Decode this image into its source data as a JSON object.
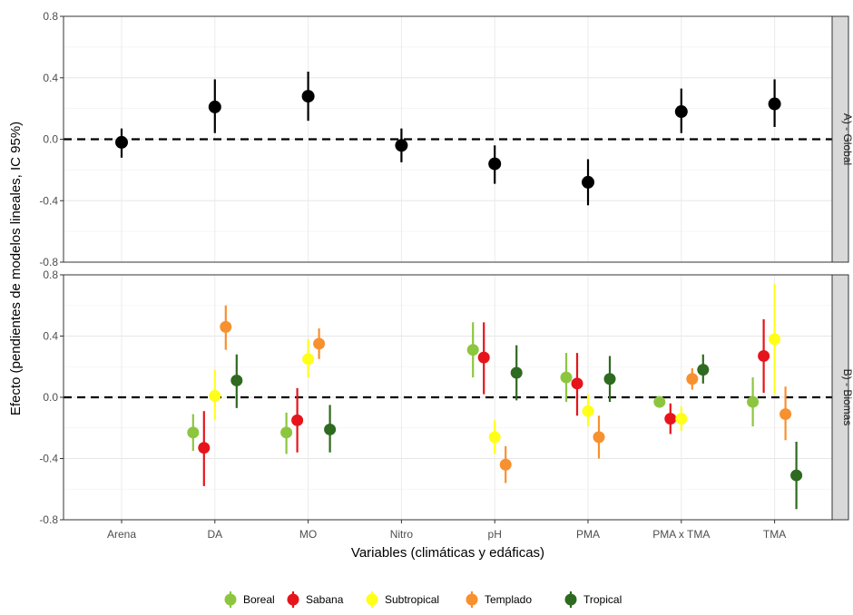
{
  "chart_data": {
    "type": "scatter",
    "subtype": "point-range facet plot",
    "xlabel": "Variables (climáticas y edáficas)",
    "ylabel": "Efecto (pendientes de modelos lineales, IC 95%)",
    "categories": [
      "Arena",
      "DA",
      "MO",
      "Nitro",
      "pH",
      "PMA",
      "PMA x TMA",
      "TMA"
    ],
    "yticks": [
      "0.8",
      "0.4",
      "0.0",
      "-0.4",
      "-0.8"
    ],
    "ylim": [
      -0.8,
      0.8
    ],
    "reference_line": 0.0,
    "legend_position": "bottom",
    "legend": [
      "Boreal",
      "Sabana",
      "Subtropical",
      "Templado",
      "Tropical"
    ],
    "colors": {
      "Global": "#000000",
      "Boreal": "#8cc63f",
      "Sabana": "#e6141b",
      "Subtropical": "#ffff1a",
      "Templado": "#f7902f",
      "Tropical": "#2e6a1f"
    },
    "panels": [
      {
        "strip": "A) - Global",
        "series": [
          {
            "name": "Global",
            "points": [
              {
                "category": "Arena",
                "y": -0.02,
                "lo": -0.12,
                "hi": 0.07
              },
              {
                "category": "DA",
                "y": 0.21,
                "lo": 0.04,
                "hi": 0.39
              },
              {
                "category": "MO",
                "y": 0.28,
                "lo": 0.12,
                "hi": 0.44
              },
              {
                "category": "Nitro",
                "y": -0.04,
                "lo": -0.15,
                "hi": 0.07
              },
              {
                "category": "pH",
                "y": -0.16,
                "lo": -0.29,
                "hi": -0.04
              },
              {
                "category": "PMA",
                "y": -0.28,
                "lo": -0.43,
                "hi": -0.13
              },
              {
                "category": "PMA x TMA",
                "y": 0.18,
                "lo": 0.04,
                "hi": 0.33
              },
              {
                "category": "TMA",
                "y": 0.23,
                "lo": 0.08,
                "hi": 0.39
              }
            ]
          }
        ]
      },
      {
        "strip": "B) - Biomas",
        "series": [
          {
            "name": "Boreal",
            "points": [
              {
                "category": "DA",
                "y": -0.23,
                "lo": -0.35,
                "hi": -0.11
              },
              {
                "category": "MO",
                "y": -0.23,
                "lo": -0.37,
                "hi": -0.1
              },
              {
                "category": "pH",
                "y": 0.31,
                "lo": 0.13,
                "hi": 0.49
              },
              {
                "category": "PMA",
                "y": 0.13,
                "lo": -0.03,
                "hi": 0.29
              },
              {
                "category": "PMA x TMA",
                "y": -0.03,
                "lo": -0.05,
                "hi": -0.01
              },
              {
                "category": "TMA",
                "y": -0.03,
                "lo": -0.19,
                "hi": 0.13
              }
            ]
          },
          {
            "name": "Sabana",
            "points": [
              {
                "category": "DA",
                "y": -0.33,
                "lo": -0.58,
                "hi": -0.09
              },
              {
                "category": "MO",
                "y": -0.15,
                "lo": -0.36,
                "hi": 0.06
              },
              {
                "category": "pH",
                "y": 0.26,
                "lo": 0.02,
                "hi": 0.49
              },
              {
                "category": "PMA",
                "y": 0.09,
                "lo": -0.12,
                "hi": 0.29
              },
              {
                "category": "PMA x TMA",
                "y": -0.14,
                "lo": -0.24,
                "hi": -0.04
              },
              {
                "category": "TMA",
                "y": 0.27,
                "lo": 0.03,
                "hi": 0.51
              }
            ]
          },
          {
            "name": "Subtropical",
            "points": [
              {
                "category": "DA",
                "y": 0.01,
                "lo": -0.15,
                "hi": 0.18
              },
              {
                "category": "MO",
                "y": 0.25,
                "lo": 0.13,
                "hi": 0.38
              },
              {
                "category": "pH",
                "y": -0.26,
                "lo": -0.37,
                "hi": -0.15
              },
              {
                "category": "PMA",
                "y": -0.09,
                "lo": -0.19,
                "hi": 0.02
              },
              {
                "category": "PMA x TMA",
                "y": -0.14,
                "lo": -0.22,
                "hi": -0.06
              },
              {
                "category": "TMA",
                "y": 0.38,
                "lo": 0.02,
                "hi": 0.74
              }
            ]
          },
          {
            "name": "Templado",
            "points": [
              {
                "category": "DA",
                "y": 0.46,
                "lo": 0.31,
                "hi": 0.6
              },
              {
                "category": "MO",
                "y": 0.35,
                "lo": 0.25,
                "hi": 0.45
              },
              {
                "category": "pH",
                "y": -0.44,
                "lo": -0.56,
                "hi": -0.32
              },
              {
                "category": "PMA",
                "y": -0.26,
                "lo": -0.4,
                "hi": -0.12
              },
              {
                "category": "PMA x TMA",
                "y": 0.12,
                "lo": 0.05,
                "hi": 0.19
              },
              {
                "category": "TMA",
                "y": -0.11,
                "lo": -0.28,
                "hi": 0.07
              }
            ]
          },
          {
            "name": "Tropical",
            "points": [
              {
                "category": "DA",
                "y": 0.11,
                "lo": -0.07,
                "hi": 0.28
              },
              {
                "category": "MO",
                "y": -0.21,
                "lo": -0.36,
                "hi": -0.05
              },
              {
                "category": "pH",
                "y": 0.16,
                "lo": -0.02,
                "hi": 0.34
              },
              {
                "category": "PMA",
                "y": 0.12,
                "lo": -0.03,
                "hi": 0.27
              },
              {
                "category": "PMA x TMA",
                "y": 0.18,
                "lo": 0.09,
                "hi": 0.28
              },
              {
                "category": "TMA",
                "y": -0.51,
                "lo": -0.73,
                "hi": -0.29
              }
            ]
          }
        ]
      }
    ]
  }
}
